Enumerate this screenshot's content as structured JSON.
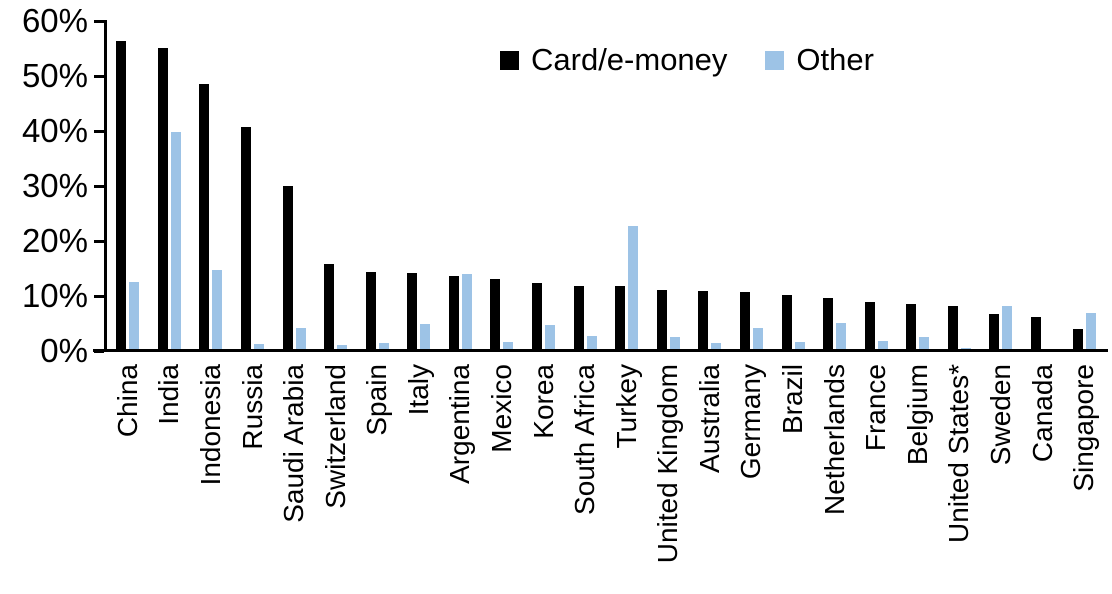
{
  "chart_data": {
    "type": "bar",
    "title": "",
    "xlabel": "",
    "ylabel": "",
    "ylim": [
      0,
      60
    ],
    "yticks": [
      0,
      10,
      20,
      30,
      40,
      50,
      60
    ],
    "ytick_labels": [
      "0%",
      "10%",
      "20%",
      "30%",
      "40%",
      "50%",
      "60%"
    ],
    "grid": false,
    "legend_position": "top-center",
    "categories": [
      "China",
      "India",
      "Indonesia",
      "Russia",
      "Saudi Arabia",
      "Switzerland",
      "Spain",
      "Italy",
      "Argentina",
      "Mexico",
      "Korea",
      "South Africa",
      "Turkey",
      "United Kingdom",
      "Australia",
      "Germany",
      "Brazil",
      "Netherlands",
      "France",
      "Belgium",
      "United States*",
      "Sweden",
      "Canada",
      "Singapore"
    ],
    "series": [
      {
        "name": "Card/e-money",
        "color": "#000000",
        "values": [
          56.2,
          55.0,
          48.3,
          40.5,
          29.8,
          15.7,
          14.2,
          14.0,
          13.4,
          13.0,
          12.2,
          11.7,
          11.7,
          11.0,
          10.8,
          10.6,
          10.0,
          9.4,
          8.8,
          8.3,
          8.0,
          6.6,
          6.0,
          3.9
        ]
      },
      {
        "name": "Other",
        "color": "#9DC3E6",
        "values": [
          12.4,
          39.7,
          14.5,
          1.1,
          4.0,
          1.0,
          1.2,
          4.7,
          13.8,
          1.5,
          4.6,
          2.5,
          22.6,
          2.4,
          1.2,
          4.0,
          1.4,
          5.0,
          1.7,
          2.3,
          0.3,
          8.1,
          0.0,
          6.7
        ]
      }
    ]
  }
}
